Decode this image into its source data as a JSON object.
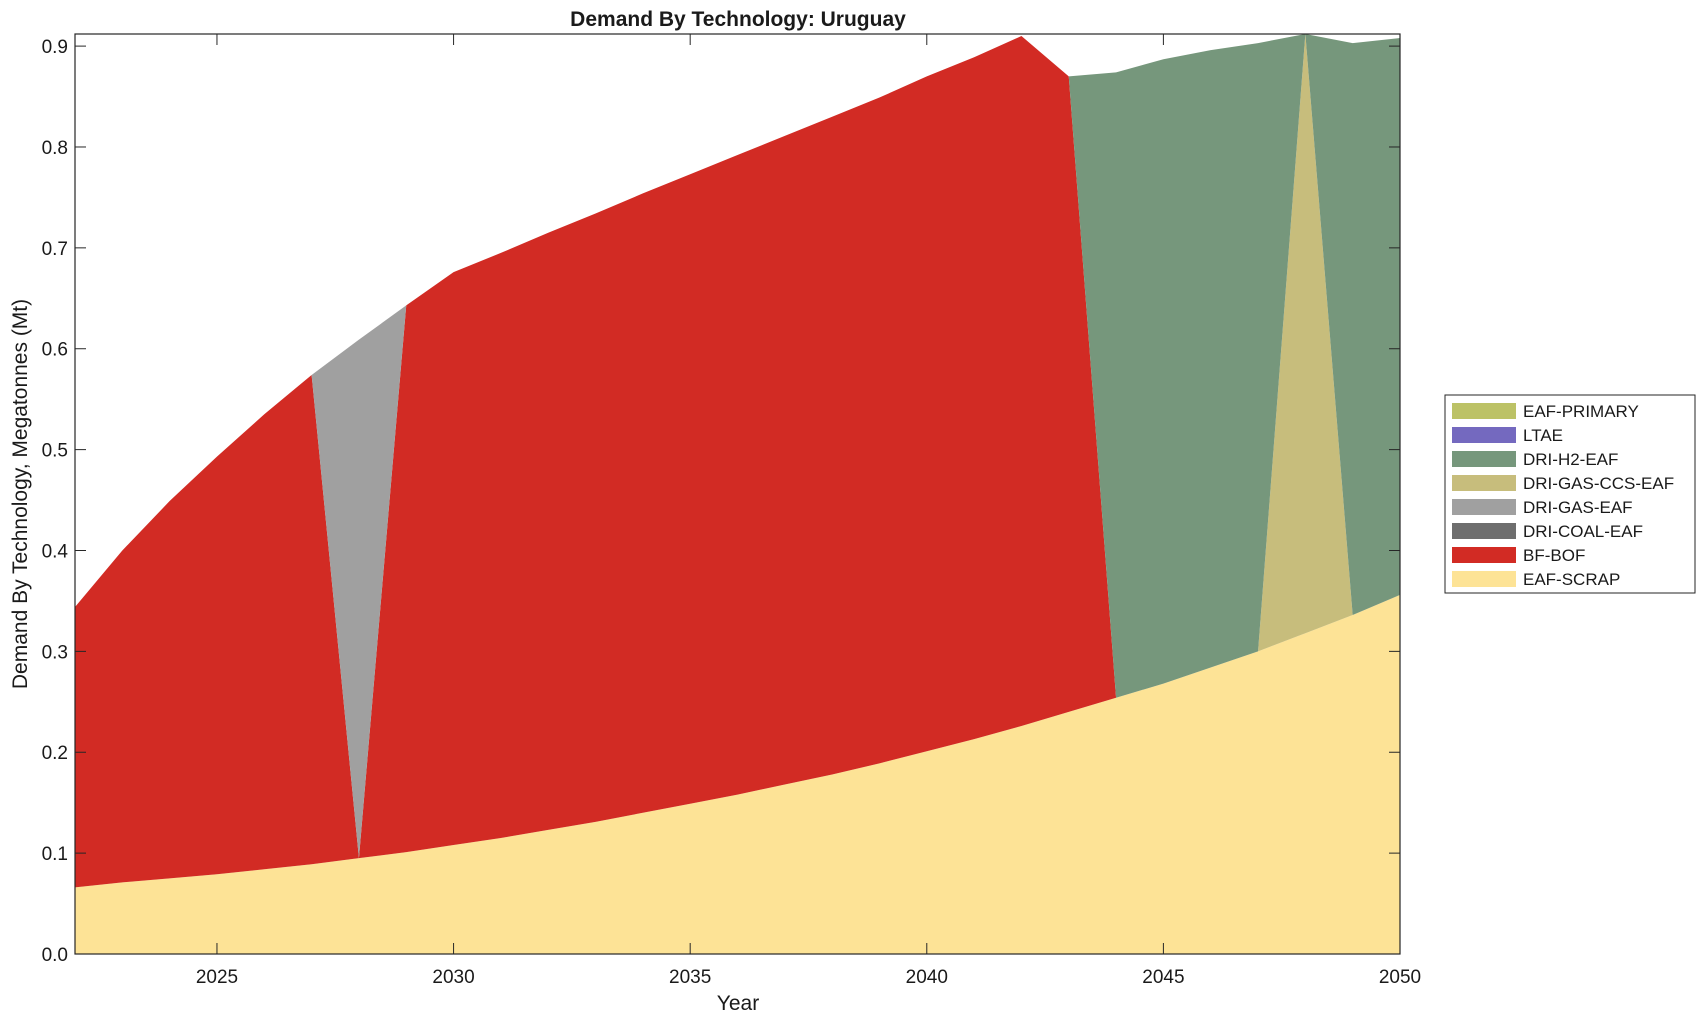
{
  "chart_data": {
    "type": "area",
    "stacked": true,
    "title": "Demand By Technology: Uruguay",
    "xlabel": "Year",
    "ylabel": "Demand By Technology, Megatonnes (Mt)",
    "xlim": [
      2022,
      2050
    ],
    "ylim": [
      0,
      0.912
    ],
    "xticks": [
      2025,
      2030,
      2035,
      2040,
      2045,
      2050
    ],
    "yticks": [
      0.0,
      0.1,
      0.2,
      0.3,
      0.4,
      0.5,
      0.6,
      0.7,
      0.8,
      0.9
    ],
    "ytick_labels": [
      "0.0",
      "0.1",
      "0.2",
      "0.3",
      "0.4",
      "0.5",
      "0.6",
      "0.7",
      "0.8",
      "0.9"
    ],
    "grid": false,
    "legend_position": "right",
    "x": [
      2022,
      2023,
      2024,
      2025,
      2026,
      2027,
      2028,
      2029,
      2030,
      2031,
      2032,
      2033,
      2034,
      2035,
      2036,
      2037,
      2038,
      2039,
      2040,
      2041,
      2042,
      2043,
      2044,
      2045,
      2046,
      2047,
      2048,
      2049,
      2050
    ],
    "series": [
      {
        "name": "EAF-SCRAP",
        "color": "#fde396",
        "values": [
          0.066,
          0.071,
          0.075,
          0.079,
          0.084,
          0.089,
          0.095,
          0.101,
          0.108,
          0.115,
          0.123,
          0.131,
          0.14,
          0.149,
          0.158,
          0.168,
          0.178,
          0.189,
          0.201,
          0.213,
          0.226,
          0.24,
          0.254,
          0.268,
          0.284,
          0.3,
          0.318,
          0.336,
          0.356
        ]
      },
      {
        "name": "BF-BOF",
        "color": "#d22b24",
        "values": [
          0.278,
          0.329,
          0.374,
          0.414,
          0.451,
          0.485,
          0,
          0.542,
          0.568,
          0.58,
          0.592,
          0.603,
          0.614,
          0.624,
          0.634,
          0.643,
          0.652,
          0.66,
          0.669,
          0.676,
          0.684,
          0.63,
          0,
          0,
          0,
          0,
          0,
          0,
          0
        ]
      },
      {
        "name": "DRI-COAL-EAF",
        "color": "#6e6e6e",
        "values": [
          0,
          0,
          0,
          0,
          0,
          0,
          0,
          0,
          0,
          0,
          0,
          0,
          0,
          0,
          0,
          0,
          0,
          0,
          0,
          0,
          0,
          0,
          0,
          0,
          0,
          0,
          0,
          0,
          0
        ]
      },
      {
        "name": "DRI-GAS-EAF",
        "color": "#a0a0a0",
        "values": [
          0,
          0,
          0,
          0,
          0,
          0,
          0.514,
          0,
          0,
          0,
          0,
          0,
          0,
          0,
          0,
          0,
          0,
          0,
          0,
          0,
          0,
          0,
          0,
          0,
          0,
          0,
          0,
          0,
          0
        ]
      },
      {
        "name": "DRI-GAS-CCS-EAF",
        "color": "#c7bd7c",
        "values": [
          0,
          0,
          0,
          0,
          0,
          0,
          0,
          0,
          0,
          0,
          0,
          0,
          0,
          0,
          0,
          0,
          0,
          0,
          0,
          0,
          0,
          0,
          0,
          0,
          0,
          0,
          0.594,
          0,
          0
        ]
      },
      {
        "name": "DRI-H2-EAF",
        "color": "#76977c",
        "values": [
          0,
          0,
          0,
          0,
          0,
          0,
          0,
          0,
          0,
          0,
          0,
          0,
          0,
          0,
          0,
          0,
          0,
          0,
          0,
          0,
          0,
          0.0,
          0.62,
          0.619,
          0.612,
          0.603,
          0,
          0.567,
          0.552
        ]
      },
      {
        "name": "LTAE",
        "color": "#7469bf",
        "values": [
          0,
          0,
          0,
          0,
          0,
          0,
          0,
          0,
          0,
          0,
          0,
          0,
          0,
          0,
          0,
          0,
          0,
          0,
          0,
          0,
          0,
          0,
          0,
          0,
          0,
          0,
          0,
          0,
          0
        ]
      },
      {
        "name": "EAF-PRIMARY",
        "color": "#bcc266",
        "values": [
          0,
          0,
          0,
          0,
          0,
          0,
          0,
          0,
          0,
          0,
          0,
          0,
          0,
          0,
          0,
          0,
          0,
          0,
          0,
          0,
          0,
          0,
          0,
          0,
          0,
          0,
          0,
          0,
          0
        ]
      }
    ],
    "legend_order": [
      "EAF-PRIMARY",
      "LTAE",
      "DRI-H2-EAF",
      "DRI-GAS-CCS-EAF",
      "DRI-GAS-EAF",
      "DRI-COAL-EAF",
      "BF-BOF",
      "EAF-SCRAP"
    ]
  }
}
